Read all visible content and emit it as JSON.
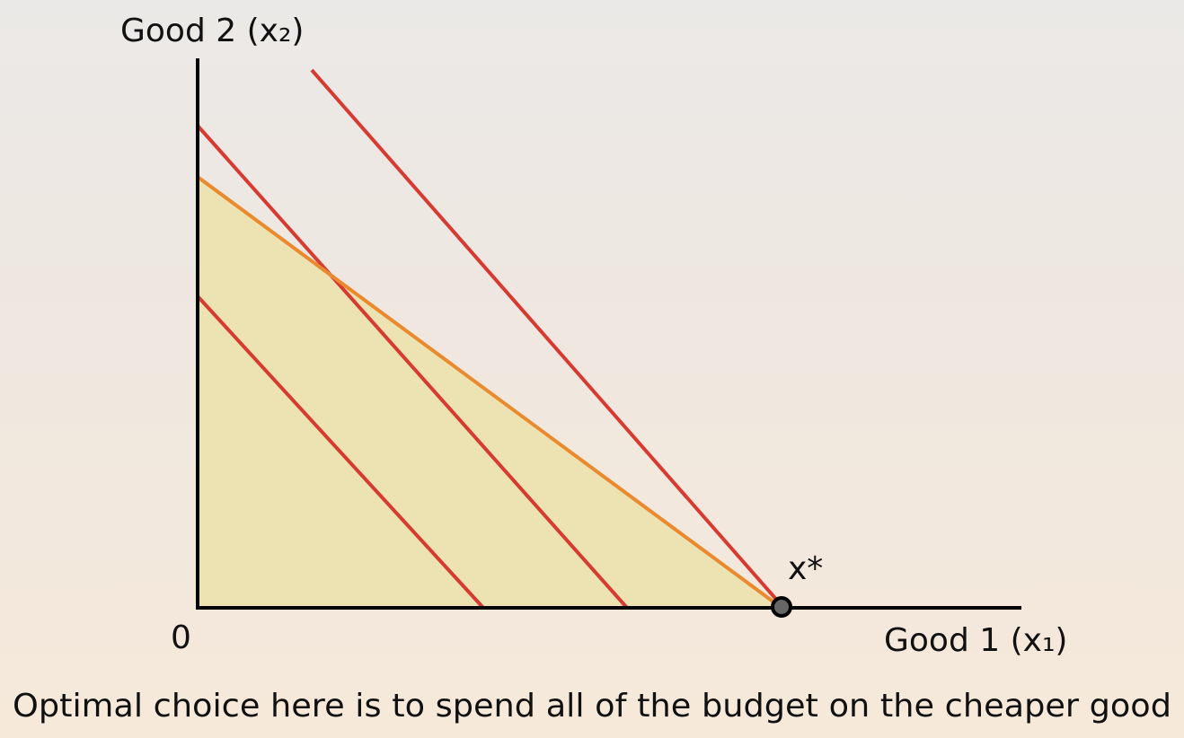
{
  "diagram": {
    "y_axis_label": "Good 2 (x₂)",
    "x_axis_label": "Good 1 (x₁)",
    "origin_label": "0",
    "optimum_label": "x*",
    "caption": "Optimal choice here is to spend all of the budget on the cheaper good"
  }
}
